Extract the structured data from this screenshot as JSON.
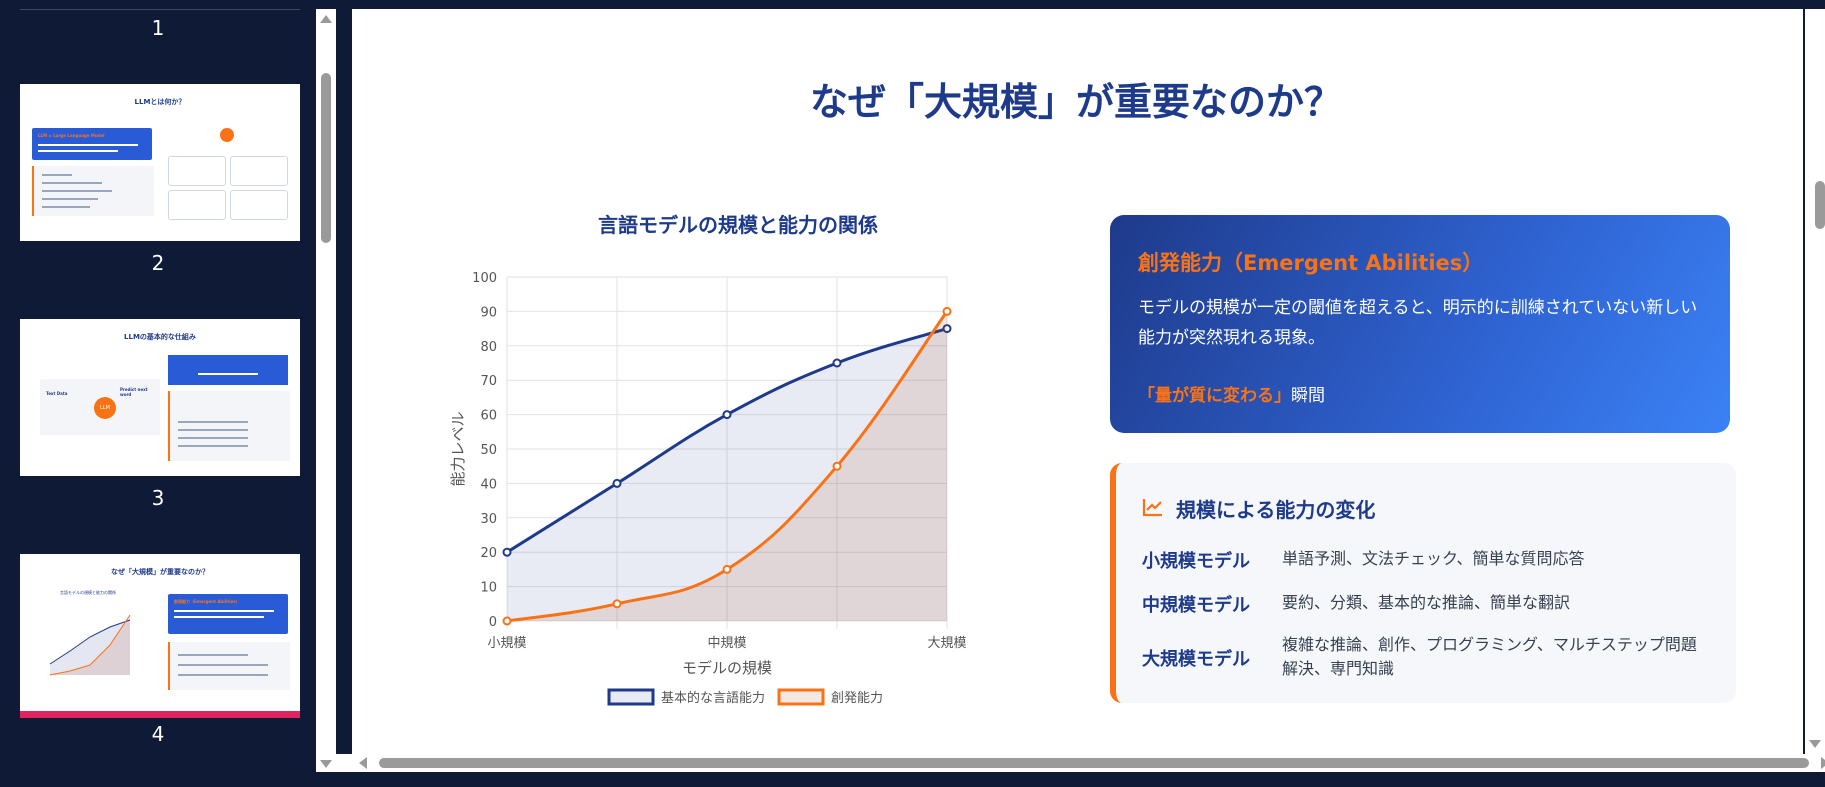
{
  "sidebar": {
    "slides": [
      {
        "number": "1"
      },
      {
        "number": "2",
        "title": "LLMとは何か？",
        "box_heading": "LLM = Large Language Model"
      },
      {
        "number": "3",
        "title": "LLMの基本的な仕組み",
        "left_a": "Text Data",
        "left_b": "Predict next word",
        "center": "LLM"
      },
      {
        "number": "4",
        "title": "なぜ「大規模」が重要なのか？",
        "chart_title": "言語モデルの規模と能力の関係",
        "box_heading": "創発能力（Emergent Abilities）"
      }
    ]
  },
  "slide": {
    "title": "なぜ「大規模」が重要なのか？",
    "emergent_card": {
      "title": "創発能力（Emergent Abilities）",
      "body": "モデルの規模が一定の閾値を超えると、明示的に訓練されていない新しい能力が突然現れる現象。",
      "quote_highlight": "「量が質に変わる」",
      "quote_rest": "瞬間"
    },
    "scale_card": {
      "icon": "line-chart-icon",
      "title": "規模による能力の変化",
      "rows": [
        {
          "label": "小規模モデル",
          "text": "単語予測、文法チェック、簡単な質問応答"
        },
        {
          "label": "中規模モデル",
          "text": "要約、分類、基本的な推論、簡単な翻訳"
        },
        {
          "label": "大規模モデル",
          "text": "複雑な推論、創作、プログラミング、マルチステップ問題解決、専門知識"
        }
      ]
    }
  },
  "chart_data": {
    "type": "line",
    "title": "言語モデルの規模と能力の関係",
    "xlabel": "モデルの規模",
    "ylabel": "能力レベル",
    "x": [
      "小規模",
      "",
      "中規模",
      "",
      "大規模"
    ],
    "ylim": [
      0,
      100
    ],
    "yticks": [
      0,
      10,
      20,
      30,
      40,
      50,
      60,
      70,
      80,
      90,
      100
    ],
    "grid": true,
    "legend": "bottom",
    "series": [
      {
        "name": "基本的な言語能力",
        "values": [
          20,
          40,
          60,
          75,
          85
        ],
        "color": "#1e3a8a",
        "fill": "rgba(30,58,138,0.1)"
      },
      {
        "name": "創発能力",
        "values": [
          0,
          5,
          15,
          45,
          90
        ],
        "color": "#f97316",
        "fill": "rgba(180,90,60,0.14)"
      }
    ]
  }
}
